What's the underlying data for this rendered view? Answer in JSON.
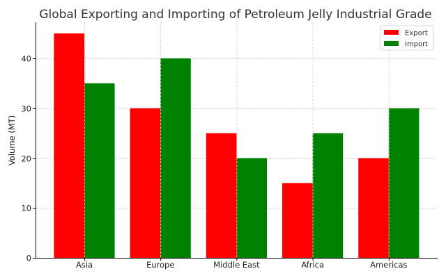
{
  "chart_data": {
    "type": "bar",
    "title": "Global Exporting and Importing of Petroleum Jelly Industrial Grade",
    "xlabel": "",
    "ylabel": "Volume (MT)",
    "categories": [
      "Asia",
      "Europe",
      "Middle East",
      "Africa",
      "Americas"
    ],
    "series": [
      {
        "name": "Export",
        "color": "#ff0000",
        "values": [
          45,
          30,
          25,
          15,
          20
        ]
      },
      {
        "name": "Import",
        "color": "#008000",
        "values": [
          35,
          40,
          20,
          25,
          30
        ]
      }
    ],
    "ylim": [
      0,
      47.25
    ],
    "yticks": [
      0,
      10,
      20,
      30,
      40
    ],
    "grid": true,
    "legend_position": "upper right"
  }
}
